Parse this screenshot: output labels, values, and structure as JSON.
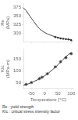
{
  "chart_data": [
    {
      "type": "line",
      "ylabel": [
        "Re",
        "(MPa)"
      ],
      "xlim": [
        -80,
        108
      ],
      "xticks": [
        -50,
        0,
        50,
        100
      ],
      "ylim": [
        275,
        385
      ],
      "yticks": [
        300,
        325,
        350,
        375
      ],
      "grid": false,
      "tick_labels": "y",
      "series": [
        {
          "type": "line",
          "color": "#444444",
          "x": [
            -80,
            -70,
            -60,
            -50,
            -40,
            -30,
            -20,
            -10,
            0,
            10,
            20,
            30,
            40,
            50,
            60,
            70,
            80,
            90,
            100
          ],
          "values": [
            373,
            365,
            354,
            343,
            333,
            322,
            313,
            307,
            302,
            298,
            295,
            292,
            290,
            288,
            286,
            284,
            283,
            282,
            281
          ]
        },
        {
          "type": "scatter",
          "marker": "circle",
          "color": "#222222",
          "x": [
            40,
            50,
            60,
            70,
            80,
            90,
            100
          ],
          "values": [
            289,
            287,
            285,
            284,
            283,
            282,
            280
          ]
        }
      ]
    },
    {
      "type": "line",
      "ylabel": [
        "KIc",
        "(MPa·m)"
      ],
      "xlabel": "Temperature (°C)",
      "xlim": [
        -80,
        108
      ],
      "xticks": [
        -50,
        0,
        50,
        100
      ],
      "ylim": [
        25,
        195
      ],
      "yticks": [
        50,
        100,
        150
      ],
      "grid": false,
      "series": [
        {
          "type": "line",
          "color": "#444444",
          "x": [
            -80,
            -70,
            -60,
            -50,
            -40,
            -30,
            -20,
            -10,
            0,
            10,
            20,
            30,
            40,
            50,
            60,
            70,
            80,
            90,
            100
          ],
          "values": [
            38,
            41,
            45,
            50,
            55,
            60,
            66,
            72,
            79,
            87,
            96,
            106,
            116,
            127,
            139,
            151,
            162,
            172,
            180
          ]
        },
        {
          "type": "scatter",
          "marker": "star",
          "color": "#222222",
          "x": [
            -70,
            -50,
            -20,
            -10,
            10,
            40,
            60,
            80,
            100
          ],
          "values": [
            42,
            50,
            67,
            73,
            88,
            118,
            140,
            158,
            175
          ]
        }
      ],
      "annotations": [
        "Re : yield strength",
        "KIc : critical stress intensity factor"
      ]
    }
  ]
}
